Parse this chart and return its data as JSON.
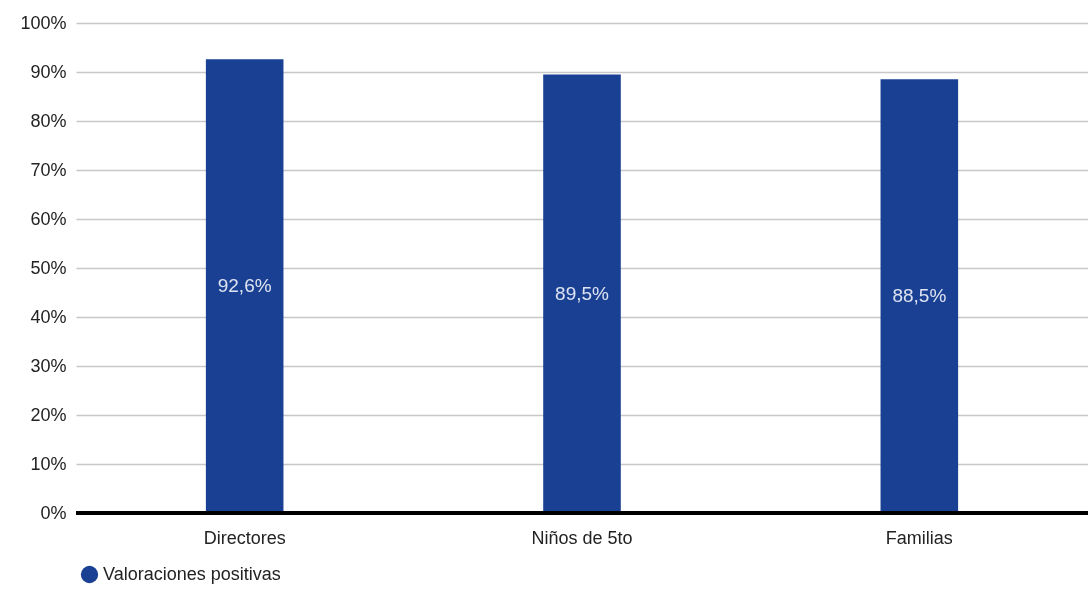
{
  "chart_data": {
    "type": "bar",
    "categories": [
      "Directores",
      "Niños de 5to",
      "Familias"
    ],
    "series": [
      {
        "name": "Valoraciones positivas",
        "color": "#1a4094",
        "values": [
          92.6,
          89.5,
          88.5
        ],
        "value_labels": [
          "92,6%",
          "89,5%",
          "88,5%"
        ]
      }
    ],
    "ylim": [
      0,
      100
    ],
    "yticks": [
      {
        "value": 0,
        "label": "0%"
      },
      {
        "value": 10,
        "label": "10%"
      },
      {
        "value": 20,
        "label": "20%"
      },
      {
        "value": 30,
        "label": "30%"
      },
      {
        "value": 40,
        "label": "40%"
      },
      {
        "value": 50,
        "label": "50%"
      },
      {
        "value": 60,
        "label": "60%"
      },
      {
        "value": 70,
        "label": "70%"
      },
      {
        "value": 80,
        "label": "80%"
      },
      {
        "value": 90,
        "label": "90%"
      },
      {
        "value": 100,
        "label": "100%"
      }
    ],
    "grid": "y",
    "legend": "bottom"
  }
}
